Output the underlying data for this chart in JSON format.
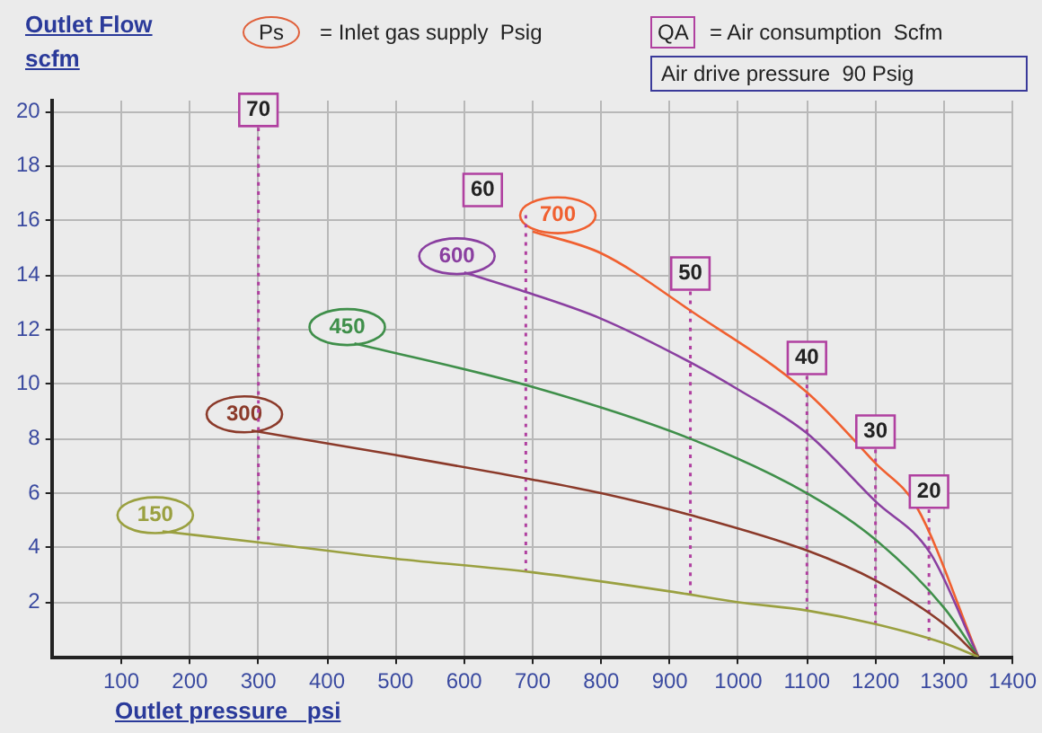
{
  "chart_data": {
    "type": "line",
    "xlabel": "Outlet pressure   psi",
    "ylabel": "Outlet Flow scfm",
    "annotations": [
      "Ps",
      "= Inlet gas supply  Psig",
      "QA",
      "= Air consumption  Scfm",
      "Air drive pressure  90 Psig"
    ],
    "xlim": [
      0,
      1400
    ],
    "xticks": [
      100,
      200,
      300,
      400,
      500,
      600,
      700,
      800,
      900,
      1000,
      1100,
      1200,
      1300,
      1400
    ],
    "ylim": [
      0,
      20.4
    ],
    "yticks": [
      2,
      4,
      6,
      8,
      10,
      12,
      14,
      16,
      18,
      20
    ],
    "grid": true,
    "legend": false,
    "marker": "none",
    "series": [
      {
        "name": "150",
        "color": "#9aa040",
        "line_style": "solid",
        "x": [
          160,
          300,
          500,
          700,
          900,
          1000,
          1100,
          1200,
          1300,
          1350
        ],
        "values": [
          4.6,
          4.2,
          3.6,
          3.1,
          2.4,
          2.0,
          1.7,
          1.2,
          0.5,
          0
        ]
      },
      {
        "name": "300",
        "color": "#8b3a2a",
        "line_style": "solid",
        "x": [
          290,
          500,
          700,
          800,
          930,
          1100,
          1200,
          1300,
          1350
        ],
        "values": [
          8.3,
          7.4,
          6.5,
          6.0,
          5.2,
          3.9,
          2.8,
          1.2,
          0
        ]
      },
      {
        "name": "450",
        "color": "#3f8f4a",
        "line_style": "solid",
        "x": [
          440,
          700,
          930,
          1100,
          1200,
          1300,
          1350
        ],
        "values": [
          11.5,
          9.9,
          8.0,
          6.0,
          4.3,
          1.8,
          0
        ]
      },
      {
        "name": "600",
        "color": "#8a3fa0",
        "line_style": "solid",
        "x": [
          600,
          700,
          800,
          930,
          1000,
          1100,
          1200,
          1280,
          1350
        ],
        "values": [
          14.1,
          13.3,
          12.4,
          10.8,
          9.8,
          8.2,
          5.7,
          3.8,
          0
        ]
      },
      {
        "name": "700",
        "color": "#f06030",
        "line_style": "solid",
        "x": [
          700,
          800,
          930,
          1100,
          1200,
          1260,
          1350
        ],
        "values": [
          15.6,
          14.8,
          12.7,
          9.7,
          7.1,
          5.5,
          0
        ]
      },
      {
        "name": "70",
        "color": "#b040a0",
        "line_style": "dotted",
        "x": [
          300,
          300
        ],
        "values": [
          19.4,
          4.3
        ]
      },
      {
        "name": "60",
        "color": "#b040a0",
        "line_style": "dotted",
        "x": [
          690,
          690
        ],
        "values": [
          16.2,
          3.1
        ]
      },
      {
        "name": "50",
        "color": "#b040a0",
        "line_style": "dotted",
        "x": [
          930,
          930
        ],
        "values": [
          13.4,
          2.3
        ]
      },
      {
        "name": "40",
        "color": "#b040a0",
        "line_style": "dotted",
        "x": [
          1100,
          1100
        ],
        "values": [
          10.3,
          1.7
        ]
      },
      {
        "name": "30",
        "color": "#b040a0",
        "line_style": "dotted",
        "x": [
          1200,
          1200
        ],
        "values": [
          7.6,
          1.2
        ]
      },
      {
        "name": "20",
        "color": "#b040a0",
        "line_style": "dotted",
        "x": [
          1278,
          1278
        ],
        "values": [
          5.4,
          0.6
        ]
      }
    ]
  }
}
